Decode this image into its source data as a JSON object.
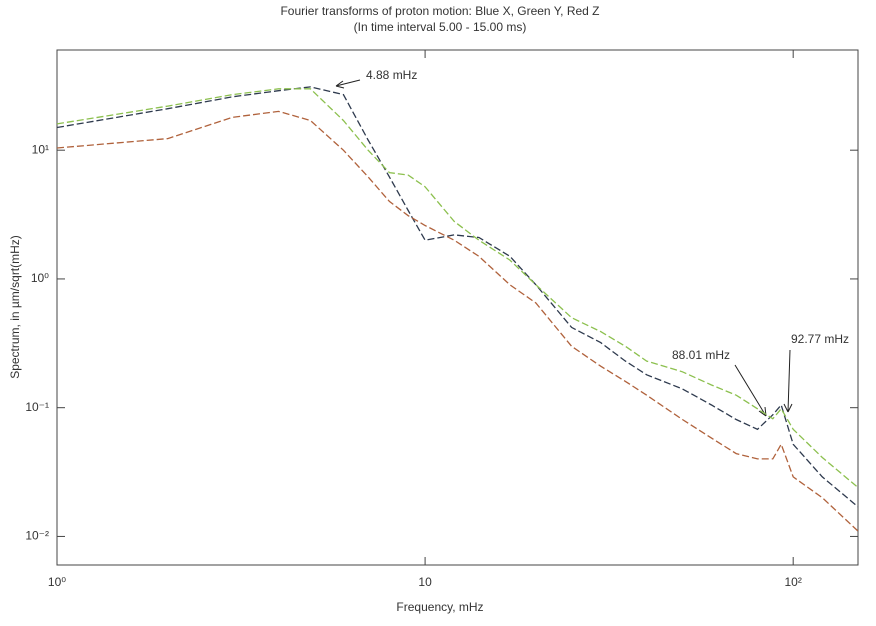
{
  "chart_data": {
    "type": "line",
    "title": "Fourier transforms of proton motion: Blue X, Green Y, Red Z",
    "subtitle": "(In time interval 5.00 - 15.00 ms)",
    "x_label": "Frequency, mHz",
    "y_label": "Spectrum, in µm/sqrt(mHz)",
    "log_x": true,
    "log_y": true,
    "xlim": [
      1,
      150
    ],
    "ylim": [
      0.006,
      60
    ],
    "xticks": [
      {
        "value": 1,
        "label": "10⁰"
      },
      10,
      {
        "value": 100,
        "label": "10²"
      }
    ],
    "yticks": [
      {
        "value": 0.01,
        "label": "10⁻²"
      },
      {
        "value": 0.1,
        "label": "10⁻¹"
      },
      {
        "value": 1,
        "label": "10⁰"
      },
      {
        "value": 10,
        "label": "10¹"
      }
    ],
    "x": [
      1,
      2,
      3,
      4,
      4.88,
      6,
      7,
      8,
      9,
      10,
      12,
      14,
      17,
      20,
      25,
      30,
      35,
      40,
      50,
      60,
      70,
      80,
      88.01,
      92.77,
      100,
      120,
      150
    ],
    "series": [
      {
        "name": "X",
        "color": "#2e3a4e",
        "values": [
          15,
          21,
          26,
          29,
          31,
          27,
          12,
          6.2,
          3.4,
          2.0,
          2.2,
          2.1,
          1.5,
          0.9,
          0.42,
          0.32,
          0.23,
          0.18,
          0.14,
          0.105,
          0.081,
          0.068,
          0.088,
          0.105,
          0.052,
          0.029,
          0.017
        ]
      },
      {
        "name": "Y",
        "color": "#8cc04e",
        "values": [
          16,
          22,
          27,
          30,
          30,
          17,
          10,
          6.7,
          6.4,
          5.2,
          2.8,
          2.0,
          1.4,
          0.9,
          0.5,
          0.39,
          0.3,
          0.23,
          0.19,
          0.15,
          0.125,
          0.098,
          0.082,
          0.098,
          0.068,
          0.041,
          0.024
        ]
      },
      {
        "name": "Z",
        "color": "#b0623c",
        "values": [
          10.4,
          12.3,
          18,
          20,
          17,
          10,
          6.2,
          4.0,
          3.1,
          2.6,
          2.0,
          1.5,
          0.9,
          0.65,
          0.3,
          0.21,
          0.16,
          0.125,
          0.081,
          0.058,
          0.044,
          0.04,
          0.04,
          0.052,
          0.029,
          0.02,
          0.011
        ]
      }
    ],
    "annotations": [
      "4.88 mHz",
      "88.01 mHz",
      "92.77 mHz"
    ]
  }
}
